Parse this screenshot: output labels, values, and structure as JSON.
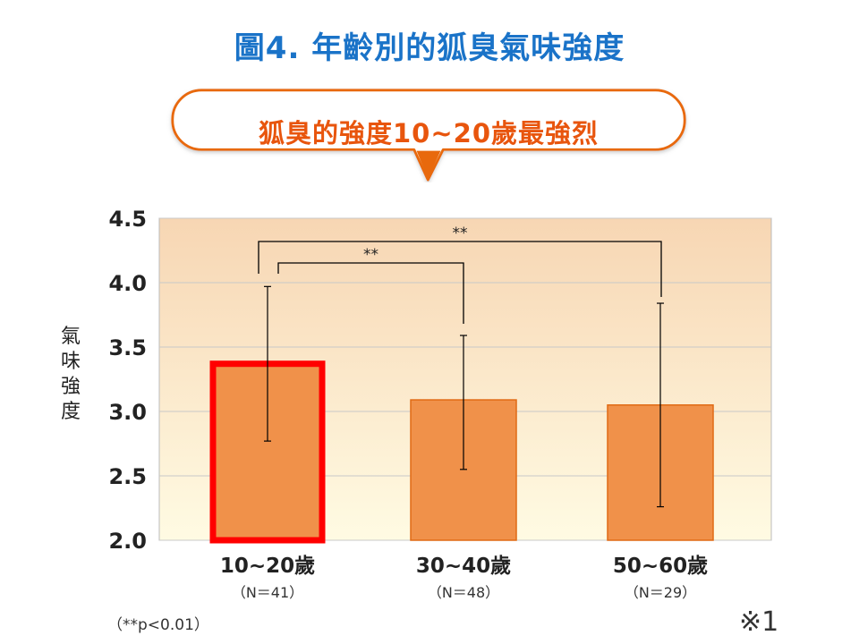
{
  "title": "圖4. 年齡別的狐臭氣味強度",
  "callout": "狐臭的強度10~20歲最強烈",
  "ylabel_chars": [
    "氣",
    "味",
    "強",
    "度"
  ],
  "significance_note": "（**p<0.01）",
  "footnote_mark": "※1",
  "colors": {
    "title": "#1a73c8",
    "callout_text": "#e8550d",
    "callout_border": "#e8690d",
    "bar_fill": "#f0914a",
    "bar_border": "#e06a14",
    "highlight_border": "#ff0000",
    "plot_bg_top": "#f7d6b3",
    "plot_bg_bottom": "#fffbe3"
  },
  "chart_data": {
    "type": "bar",
    "ylabel": "氣味強度",
    "ylim": [
      2.0,
      4.5
    ],
    "yticks": [
      "2.0",
      "2.5",
      "3.0",
      "3.5",
      "4.0",
      "4.5"
    ],
    "grid": true,
    "categories": [
      "10~20歲",
      "30~40歲",
      "50~60歲"
    ],
    "sample_sizes": [
      "（N＝41）",
      "（N＝48）",
      "（N＝29）"
    ],
    "values": [
      3.37,
      3.09,
      3.05
    ],
    "error_low": [
      2.77,
      2.55,
      2.26
    ],
    "error_high": [
      3.97,
      3.59,
      3.84
    ],
    "highlighted_category": "10~20歲",
    "significance": [
      {
        "from": "10~20歲",
        "to": "30~40歲",
        "label": "**"
      },
      {
        "from": "10~20歲",
        "to": "50~60歲",
        "label": "**"
      }
    ]
  }
}
